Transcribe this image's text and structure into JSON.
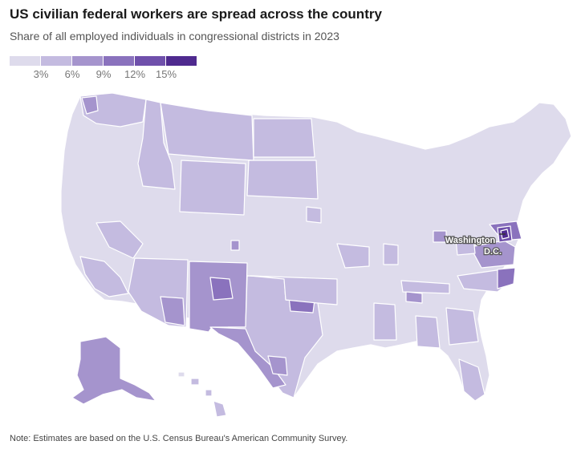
{
  "title": "US civilian federal workers are spread across the country",
  "subtitle": "Share of all employed individuals in congressional districts in 2023",
  "legend": {
    "colors": [
      "#dedbec",
      "#c4bbe0",
      "#a594cd",
      "#8a72bd",
      "#6f50ab",
      "#4f2a8f"
    ],
    "ticks": [
      "3%",
      "6%",
      "9%",
      "12%",
      "15%"
    ]
  },
  "map": {
    "callout_line1": "Washington",
    "callout_line2": "D.C."
  },
  "note": "Note: Estimates are based on the U.S. Census Bureau's American Community Survey."
}
